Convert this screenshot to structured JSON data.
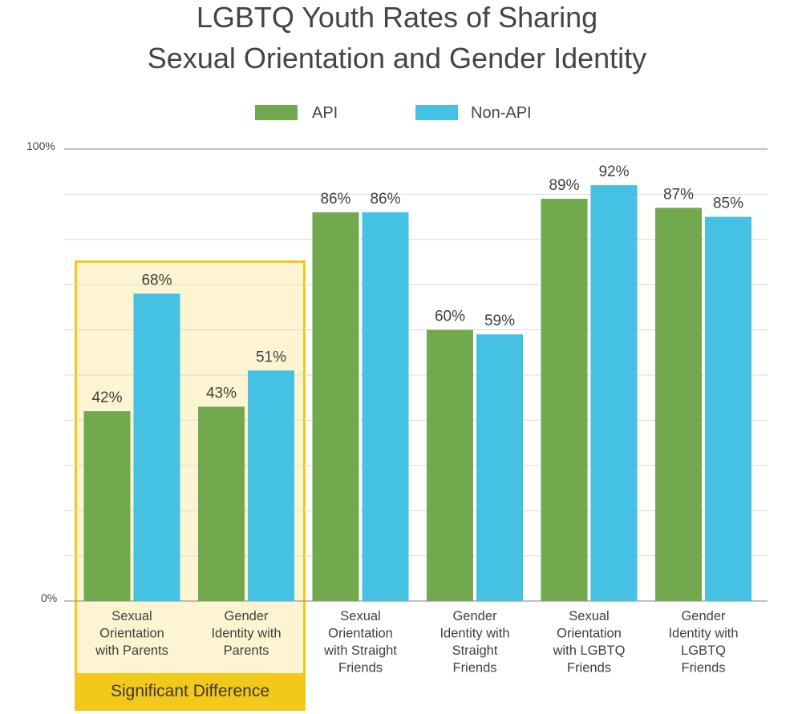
{
  "chart_data": {
    "type": "bar",
    "title": [
      "LGBTQ Youth Rates of Sharing",
      "Sexual Orientation and Gender Identity"
    ],
    "categories": [
      [
        "Sexual",
        "Orientation",
        "with Parents"
      ],
      [
        "Gender",
        "Identity with",
        "Parents"
      ],
      [
        "Sexual",
        "Orientation",
        "with Straight",
        "Friends"
      ],
      [
        "Gender",
        "Identity with",
        "Straight",
        "Friends"
      ],
      [
        "Sexual",
        "Orientation",
        "with LGBTQ",
        "Friends"
      ],
      [
        "Gender",
        "Identity with",
        "LGBTQ",
        "Friends"
      ]
    ],
    "series": [
      {
        "name": "API",
        "color": "#72a94f",
        "values": [
          42,
          43,
          86,
          60,
          89,
          87
        ],
        "labels": [
          "42%",
          "43%",
          "86%",
          "60%",
          "89%",
          "87%"
        ]
      },
      {
        "name": "Non-API",
        "color": "#45c1e3",
        "values": [
          68,
          51,
          86,
          59,
          92,
          85
        ],
        "labels": [
          "68%",
          "51%",
          "86%",
          "59%",
          "92%",
          "85%"
        ]
      }
    ],
    "ylim": [
      0,
      100
    ],
    "y_tick_labels": {
      "top": "100%",
      "bottom": "0%"
    },
    "xlabel": "",
    "ylabel": "",
    "grid": true,
    "legend": "top-center",
    "highlight": {
      "label": "Significant Difference",
      "category_indices": [
        0,
        1
      ],
      "fill": "#fdf4d2",
      "border": "#f2c81b",
      "badge_fill": "#f2c81b"
    }
  }
}
